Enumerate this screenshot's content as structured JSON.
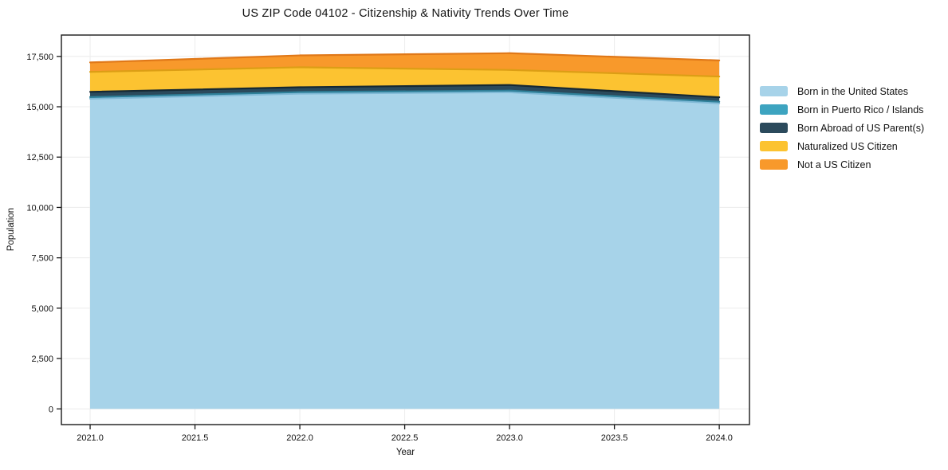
{
  "chart_data": {
    "type": "area",
    "stacked": true,
    "title": "US ZIP Code 04102 - Citizenship & Nativity Trends Over Time",
    "xlabel": "Year",
    "ylabel": "Population",
    "x": [
      2021,
      2022,
      2023,
      2024
    ],
    "series": [
      {
        "name": "Born in the United States",
        "values": [
          15400,
          15650,
          15720,
          15170
        ],
        "color": "#a7d3e9",
        "edge_color": "#7fb9d6"
      },
      {
        "name": "Born in Puerto Rico / Islands",
        "values": [
          80,
          80,
          80,
          80
        ],
        "color": "#3da4c0",
        "edge_color": "#2f8099"
      },
      {
        "name": "Born Abroad of US Parent(s)",
        "values": [
          260,
          240,
          280,
          220
        ],
        "color": "#2b4a5c",
        "edge_color": "#152833"
      },
      {
        "name": "Naturalized US Citizen",
        "values": [
          990,
          990,
          750,
          1030
        ],
        "color": "#fcc331",
        "edge_color": "#dc9e15"
      },
      {
        "name": "Not a US Citizen",
        "values": [
          470,
          590,
          830,
          800
        ],
        "color": "#f8992b",
        "edge_color": "#e07818"
      }
    ],
    "totals": [
      17200,
      17550,
      17660,
      17300
    ],
    "xlim": [
      2020.863,
      2024.144
    ],
    "ylim": [
      -780,
      18560
    ],
    "x_ticks": [
      2021.0,
      2021.5,
      2022.0,
      2022.5,
      2023.0,
      2023.5,
      2024.0
    ],
    "x_tick_labels": [
      "2021.0",
      "2021.5",
      "2022.0",
      "2022.5",
      "2023.0",
      "2023.5",
      "2024.0"
    ],
    "y_ticks": [
      0,
      2500,
      5000,
      7500,
      10000,
      12500,
      15000,
      17500
    ],
    "y_tick_labels": [
      "0",
      "2,500",
      "5,000",
      "7,500",
      "10,000",
      "12,500",
      "15,000",
      "17,500"
    ],
    "grid": true,
    "legend_position": "right outside"
  }
}
